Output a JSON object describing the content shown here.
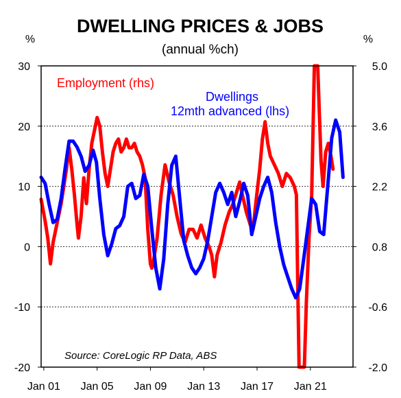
{
  "chart_data": {
    "type": "line",
    "title": "DWELLING PRICES & JOBS",
    "subtitle": "(annual %ch)",
    "left_unit": "%",
    "right_unit": "%",
    "x_range": [
      2000.8,
      2024.2
    ],
    "x_ticks": [
      {
        "label": "Jan 01",
        "x": 2001
      },
      {
        "label": "Jan 05",
        "x": 2005
      },
      {
        "label": "Jan 09",
        "x": 2009
      },
      {
        "label": "Jan 13",
        "x": 2013
      },
      {
        "label": "Jan 17",
        "x": 2017
      },
      {
        "label": "Jan 21",
        "x": 2021
      }
    ],
    "y_left": {
      "min": -20,
      "max": 30,
      "ticks": [
        "30",
        "20",
        "10",
        "0",
        "-10",
        "-20"
      ]
    },
    "y_right": {
      "min": -2.0,
      "max": 5.0,
      "ticks": [
        "5.0",
        "3.6",
        "2.2",
        "0.8",
        "-0.6",
        "-2.0"
      ]
    },
    "grid": "horizontal dashed",
    "annotation": "Source: CoreLogic RP Data, ABS",
    "series": [
      {
        "name": "Employment (rhs)",
        "axis": "right",
        "color": "#ff0000",
        "points": [
          [
            2000.8,
            1.9
          ],
          [
            2001.1,
            1.4
          ],
          [
            2001.3,
            1.0
          ],
          [
            2001.5,
            0.4
          ],
          [
            2001.7,
            0.9
          ],
          [
            2001.9,
            1.2
          ],
          [
            2002.1,
            1.5
          ],
          [
            2002.3,
            1.8
          ],
          [
            2002.5,
            2.2
          ],
          [
            2002.7,
            2.6
          ],
          [
            2002.9,
            3.1
          ],
          [
            2003.1,
            2.6
          ],
          [
            2003.3,
            2.0
          ],
          [
            2003.5,
            1.3
          ],
          [
            2003.6,
            1.0
          ],
          [
            2003.8,
            1.5
          ],
          [
            2004.0,
            2.4
          ],
          [
            2004.2,
            1.8
          ],
          [
            2004.4,
            2.6
          ],
          [
            2004.6,
            3.2
          ],
          [
            2004.8,
            3.5
          ],
          [
            2005.0,
            3.8
          ],
          [
            2005.2,
            3.6
          ],
          [
            2005.4,
            3.0
          ],
          [
            2005.6,
            2.5
          ],
          [
            2005.8,
            2.2
          ],
          [
            2006.0,
            2.6
          ],
          [
            2006.2,
            3.0
          ],
          [
            2006.4,
            3.2
          ],
          [
            2006.6,
            3.3
          ],
          [
            2006.8,
            3.0
          ],
          [
            2007.0,
            3.1
          ],
          [
            2007.2,
            3.3
          ],
          [
            2007.4,
            3.1
          ],
          [
            2007.6,
            3.1
          ],
          [
            2007.8,
            3.2
          ],
          [
            2008.0,
            3.0
          ],
          [
            2008.2,
            2.9
          ],
          [
            2008.4,
            2.7
          ],
          [
            2008.6,
            2.4
          ],
          [
            2008.8,
            1.2
          ],
          [
            2009.0,
            0.4
          ],
          [
            2009.1,
            0.3
          ],
          [
            2009.2,
            0.4
          ],
          [
            2009.5,
            1.0
          ],
          [
            2009.8,
            2.0
          ],
          [
            2010.1,
            2.7
          ],
          [
            2010.4,
            2.3
          ],
          [
            2010.7,
            2.0
          ],
          [
            2011.0,
            1.5
          ],
          [
            2011.3,
            1.1
          ],
          [
            2011.6,
            0.9
          ],
          [
            2011.9,
            1.2
          ],
          [
            2012.2,
            1.2
          ],
          [
            2012.5,
            1.0
          ],
          [
            2012.8,
            1.3
          ],
          [
            2013.1,
            1.0
          ],
          [
            2013.4,
            0.8
          ],
          [
            2013.6,
            0.6
          ],
          [
            2013.8,
            0.1
          ],
          [
            2014.0,
            0.6
          ],
          [
            2014.3,
            0.9
          ],
          [
            2014.6,
            1.3
          ],
          [
            2014.9,
            1.6
          ],
          [
            2015.2,
            1.8
          ],
          [
            2015.5,
            2.1
          ],
          [
            2015.7,
            2.3
          ],
          [
            2015.9,
            2.0
          ],
          [
            2016.2,
            1.6
          ],
          [
            2016.5,
            1.3
          ],
          [
            2016.7,
            1.2
          ],
          [
            2016.9,
            1.8
          ],
          [
            2017.2,
            2.6
          ],
          [
            2017.4,
            3.3
          ],
          [
            2017.6,
            3.7
          ],
          [
            2017.8,
            3.2
          ],
          [
            2018.0,
            2.9
          ],
          [
            2018.3,
            2.7
          ],
          [
            2018.6,
            2.5
          ],
          [
            2018.9,
            2.2
          ],
          [
            2019.2,
            2.5
          ],
          [
            2019.5,
            2.4
          ],
          [
            2019.8,
            2.2
          ],
          [
            2019.95,
            2.0
          ],
          [
            2020.05,
            0.0
          ],
          [
            2020.15,
            -2.0
          ],
          [
            2020.35,
            -2.0
          ],
          [
            2020.55,
            -2.0
          ],
          [
            2020.7,
            -0.5
          ],
          [
            2020.9,
            1.0
          ],
          [
            2021.1,
            2.0
          ],
          [
            2021.3,
            5.0
          ],
          [
            2021.55,
            5.0
          ],
          [
            2021.8,
            2.8
          ],
          [
            2021.95,
            2.2
          ],
          [
            2022.15,
            3.0
          ],
          [
            2022.35,
            3.2
          ],
          [
            2022.55,
            2.9
          ],
          [
            2022.7,
            2.6
          ]
        ]
      },
      {
        "name": "Dwellings 12mth advanced (lhs)",
        "axis": "left",
        "color": "#0000ff",
        "points": [
          [
            2000.8,
            11.5
          ],
          [
            2001.1,
            10.5
          ],
          [
            2001.4,
            7.0
          ],
          [
            2001.7,
            4.0
          ],
          [
            2002.0,
            4.5
          ],
          [
            2002.3,
            8.0
          ],
          [
            2002.6,
            13.0
          ],
          [
            2002.9,
            17.5
          ],
          [
            2003.2,
            17.5
          ],
          [
            2003.5,
            16.5
          ],
          [
            2003.8,
            15.0
          ],
          [
            2004.1,
            12.5
          ],
          [
            2004.4,
            13.5
          ],
          [
            2004.7,
            16.0
          ],
          [
            2004.95,
            14.0
          ],
          [
            2005.2,
            8.0
          ],
          [
            2005.5,
            2.0
          ],
          [
            2005.8,
            -1.5
          ],
          [
            2006.1,
            0.5
          ],
          [
            2006.4,
            3.0
          ],
          [
            2006.7,
            3.5
          ],
          [
            2007.0,
            5.0
          ],
          [
            2007.3,
            10.0
          ],
          [
            2007.6,
            10.5
          ],
          [
            2007.9,
            8.0
          ],
          [
            2008.2,
            8.5
          ],
          [
            2008.5,
            12.0
          ],
          [
            2008.8,
            10.0
          ],
          [
            2009.1,
            3.0
          ],
          [
            2009.4,
            -3.5
          ],
          [
            2009.7,
            -7.0
          ],
          [
            2010.0,
            -2.0
          ],
          [
            2010.3,
            7.0
          ],
          [
            2010.6,
            13.5
          ],
          [
            2010.9,
            15.0
          ],
          [
            2011.2,
            8.0
          ],
          [
            2011.5,
            1.0
          ],
          [
            2011.8,
            -1.5
          ],
          [
            2012.1,
            -3.5
          ],
          [
            2012.4,
            -4.5
          ],
          [
            2012.7,
            -3.5
          ],
          [
            2013.0,
            -2.0
          ],
          [
            2013.3,
            1.0
          ],
          [
            2013.6,
            5.0
          ],
          [
            2013.9,
            9.0
          ],
          [
            2014.2,
            10.5
          ],
          [
            2014.5,
            9.0
          ],
          [
            2014.8,
            7.0
          ],
          [
            2015.1,
            9.0
          ],
          [
            2015.4,
            5.0
          ],
          [
            2015.7,
            7.5
          ],
          [
            2016.0,
            10.5
          ],
          [
            2016.3,
            8.5
          ],
          [
            2016.6,
            2.0
          ],
          [
            2016.9,
            5.0
          ],
          [
            2017.2,
            8.0
          ],
          [
            2017.5,
            10.0
          ],
          [
            2017.8,
            11.5
          ],
          [
            2018.1,
            9.0
          ],
          [
            2018.4,
            4.0
          ],
          [
            2018.7,
            0.0
          ],
          [
            2019.0,
            -3.0
          ],
          [
            2019.3,
            -5.0
          ],
          [
            2019.6,
            -7.0
          ],
          [
            2019.9,
            -8.5
          ],
          [
            2020.2,
            -7.0
          ],
          [
            2020.5,
            -2.0
          ],
          [
            2020.8,
            3.0
          ],
          [
            2021.1,
            8.0
          ],
          [
            2021.4,
            7.0
          ],
          [
            2021.7,
            2.5
          ],
          [
            2022.0,
            2.0
          ],
          [
            2022.3,
            10.0
          ],
          [
            2022.6,
            18.0
          ],
          [
            2022.9,
            21.0
          ],
          [
            2023.2,
            19.0
          ],
          [
            2023.45,
            11.5
          ]
        ]
      }
    ]
  }
}
